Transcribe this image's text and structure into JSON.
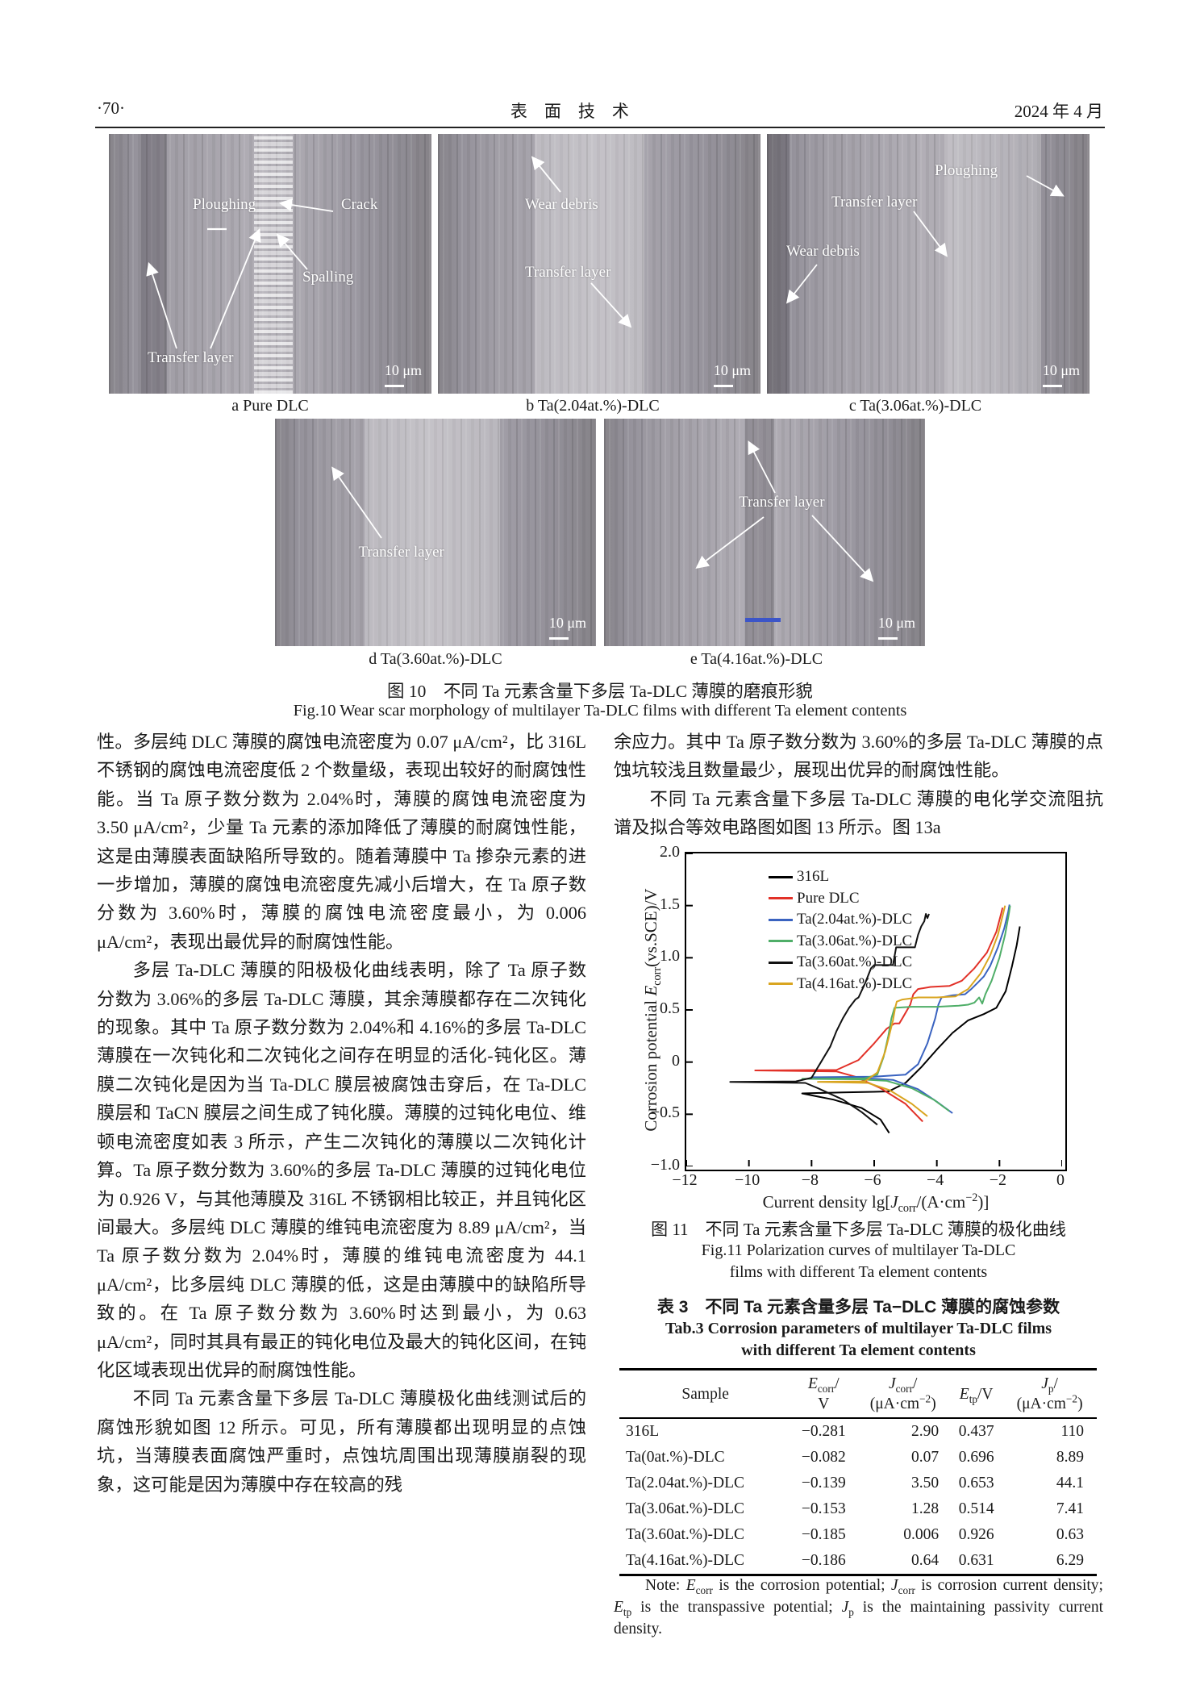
{
  "header": {
    "page_number": "·70·",
    "journal_title": "表　面　技　术",
    "date": "2024 年 4 月"
  },
  "figure10": {
    "images": [
      {
        "caption": "a  Pure DLC",
        "scale": "10 μm",
        "ploughing": "Ploughing",
        "crack": "Crack",
        "spalling": "Spalling",
        "transfer": "Transfer layer"
      },
      {
        "caption": "b  Ta(2.04at.%)-DLC",
        "scale": "10 μm",
        "wear_debris": "Wear debris",
        "transfer": "Transfer layer"
      },
      {
        "caption": "c  Ta(3.06at.%)-DLC",
        "scale": "10 μm",
        "ploughing": "Ploughing",
        "transfer": "Transfer layer",
        "wear_debris": "Wear debris"
      },
      {
        "caption": "d  Ta(3.60at.%)-DLC",
        "scale": "10 μm",
        "transfer": "Transfer layer"
      },
      {
        "caption": "e  Ta(4.16at.%)-DLC",
        "scale": "10 μm",
        "transfer": "Transfer layer"
      }
    ],
    "caption_zh": "图 10　不同 Ta 元素含量下多层 Ta-DLC 薄膜的磨痕形貌",
    "caption_en": "Fig.10 Wear scar morphology of multilayer Ta-DLC films with different Ta element contents"
  },
  "left_column": {
    "paragraphs": [
      "性。多层纯 DLC 薄膜的腐蚀电流密度为 0.07 μA/cm²，比 316L 不锈钢的腐蚀电流密度低 2 个数量级，表现出较好的耐腐蚀性能。当 Ta 原子数分数为 2.04%时，薄膜的腐蚀电流密度为 3.50 μA/cm²，少量 Ta 元素的添加降低了薄膜的耐腐蚀性能，这是由薄膜表面缺陷所导致的。随着薄膜中 Ta 掺杂元素的进一步增加，薄膜的腐蚀电流密度先减小后增大，在 Ta 原子数分数为 3.60%时，薄膜的腐蚀电流密度最小，为 0.006 μA/cm²，表现出最优异的耐腐蚀性能。",
      "多层 Ta-DLC 薄膜的阳极极化曲线表明，除了 Ta 原子数分数为 3.06%的多层 Ta-DLC 薄膜，其余薄膜都存在二次钝化的现象。其中 Ta 原子数分数为 2.04%和 4.16%的多层 Ta-DLC 薄膜在一次钝化和二次钝化之间存在明显的活化-钝化区。薄膜二次钝化是因为当 Ta-DLC 膜层被腐蚀击穿后，在 Ta-DLC 膜层和 TaCN 膜层之间生成了钝化膜。薄膜的过钝化电位、维顿电流密度如表 3 所示，产生二次钝化的薄膜以二次钝化计算。Ta 原子数分数为 3.60%的多层 Ta-DLC 薄膜的过钝化电位为 0.926 V，与其他薄膜及 316L 不锈钢相比较正，并且钝化区间最大。多层纯 DLC 薄膜的维钝电流密度为 8.89 μA/cm²，当 Ta 原子数分数为 2.04%时，薄膜的维钝电流密度为 44.1 μA/cm²，比多层纯 DLC 薄膜的低，这是由薄膜中的缺陷所导致的。在 Ta 原子数分数为 3.60%时达到最小，为 0.63 μA/cm²，同时其具有最正的钝化电位及最大的钝化区间，在钝化区域表现出优异的耐腐蚀性能。",
      "不同 Ta 元素含量下多层 Ta-DLC 薄膜极化曲线测试后的腐蚀形貌如图 12 所示。可见，所有薄膜都出现明显的点蚀坑，当薄膜表面腐蚀严重时，点蚀坑周围出现薄膜崩裂的现象，这可能是因为薄膜中存在较高的残"
    ]
  },
  "right_column": {
    "paragraphs": [
      "余应力。其中 Ta 原子数分数为 3.60%的多层 Ta-DLC 薄膜的点蚀坑较浅且数量最少，展现出优异的耐腐蚀性能。",
      "不同 Ta 元素含量下多层 Ta-DLC 薄膜的电化学交流阻抗谱及拟合等效电路图如图 13 所示。图 13a"
    ]
  },
  "chart_data": {
    "type": "line",
    "xlabel": "Current density lg[*J*_{corr}/(A·cm^{−2})]",
    "ylabel": "Corrosion potential *E*_{corr}(vs.SCE)/V",
    "xlim": [
      -12,
      0
    ],
    "ylim": [
      -1.0,
      2.0
    ],
    "xticks": [
      -12,
      -10,
      -8,
      -6,
      -4,
      -2,
      0
    ],
    "yticks": [
      -1.0,
      -0.5,
      0,
      0.5,
      1.0,
      1.5,
      2.0
    ],
    "grid": false,
    "legend_position": "top-left",
    "series": [
      {
        "name": "316L",
        "color": "#000000",
        "points": [
          [
            -5.52,
            -0.68
          ],
          [
            -5.8,
            -0.55
          ],
          [
            -6.4,
            -0.44
          ],
          [
            -7.3,
            -0.36
          ],
          [
            -8.3,
            -0.3
          ],
          [
            -7.0,
            -0.29
          ],
          [
            -6.0,
            -0.285
          ],
          [
            -5.54,
            -0.281
          ],
          [
            -5.0,
            -0.2
          ],
          [
            -4.5,
            -0.05
          ],
          [
            -4.0,
            0.12
          ],
          [
            -3.5,
            0.28
          ],
          [
            -3.0,
            0.4
          ],
          [
            -2.5,
            0.46
          ],
          [
            -2.1,
            0.52
          ],
          [
            -1.8,
            0.68
          ],
          [
            -1.6,
            0.92
          ],
          [
            -1.45,
            1.12
          ],
          [
            -1.35,
            1.3
          ]
        ]
      },
      {
        "name": "Pure DLC",
        "color": "#e23128",
        "points": [
          [
            -4.45,
            -0.57
          ],
          [
            -5.0,
            -0.4
          ],
          [
            -5.8,
            -0.25
          ],
          [
            -6.6,
            -0.14
          ],
          [
            -7.2,
            -0.09
          ],
          [
            -9.8,
            -0.08
          ],
          [
            -7.2,
            -0.075
          ],
          [
            -6.5,
            0.02
          ],
          [
            -6.0,
            0.18
          ],
          [
            -5.6,
            0.32
          ],
          [
            -5.35,
            0.37
          ],
          [
            -5.2,
            0.37
          ],
          [
            -5.1,
            0.42
          ],
          [
            -4.85,
            0.55
          ],
          [
            -4.75,
            0.65
          ],
          [
            -4.6,
            0.7
          ],
          [
            -4.2,
            0.72
          ],
          [
            -3.6,
            0.73
          ],
          [
            -3.2,
            0.78
          ],
          [
            -2.8,
            0.9
          ],
          [
            -2.4,
            1.05
          ],
          [
            -2.1,
            1.25
          ],
          [
            -1.95,
            1.42
          ],
          [
            -1.9,
            1.48
          ]
        ]
      },
      {
        "name": "Ta(2.04at.%)-DLC",
        "color": "#3a63c0",
        "points": [
          [
            -3.5,
            -0.49
          ],
          [
            -4.0,
            -0.38
          ],
          [
            -4.6,
            -0.26
          ],
          [
            -5.4,
            -0.17
          ],
          [
            -6.5,
            -0.15
          ],
          [
            -8.0,
            -0.145
          ],
          [
            -6.0,
            -0.14
          ],
          [
            -5.0,
            -0.12
          ],
          [
            -4.6,
            -0.02
          ],
          [
            -4.3,
            0.18
          ],
          [
            -4.05,
            0.42
          ],
          [
            -3.95,
            0.55
          ],
          [
            -3.85,
            0.62
          ],
          [
            -3.5,
            0.64
          ],
          [
            -3.1,
            0.65
          ],
          [
            -2.9,
            0.7
          ],
          [
            -2.7,
            0.76
          ],
          [
            -2.5,
            0.82
          ],
          [
            -2.3,
            0.92
          ],
          [
            -2.05,
            1.1
          ],
          [
            -1.85,
            1.28
          ],
          [
            -1.72,
            1.44
          ],
          [
            -1.68,
            1.51
          ]
        ]
      },
      {
        "name": "Ta(3.06at.%)-DLC",
        "color": "#4fae68",
        "points": [
          [
            -3.6,
            -0.47
          ],
          [
            -4.1,
            -0.36
          ],
          [
            -4.8,
            -0.25
          ],
          [
            -5.6,
            -0.18
          ],
          [
            -6.5,
            -0.165
          ],
          [
            -8.3,
            -0.16
          ],
          [
            -6.3,
            -0.155
          ],
          [
            -5.9,
            -0.12
          ],
          [
            -5.7,
            0.05
          ],
          [
            -5.55,
            0.25
          ],
          [
            -5.45,
            0.42
          ],
          [
            -5.35,
            0.52
          ],
          [
            -4.8,
            0.53
          ],
          [
            -4.0,
            0.53
          ],
          [
            -3.3,
            0.54
          ],
          [
            -3.0,
            0.55
          ],
          [
            -2.8,
            0.57
          ],
          [
            -2.65,
            0.62
          ],
          [
            -2.55,
            0.56
          ],
          [
            -2.45,
            0.65
          ],
          [
            -2.25,
            0.78
          ],
          [
            -2.0,
            1.0
          ],
          [
            -1.82,
            1.22
          ],
          [
            -1.7,
            1.42
          ],
          [
            -1.66,
            1.5
          ]
        ]
      },
      {
        "name": "Ta(3.60at.%)-DLC",
        "color": "#111111",
        "points": [
          [
            -5.9,
            -0.6
          ],
          [
            -6.4,
            -0.48
          ],
          [
            -7.0,
            -0.36
          ],
          [
            -7.8,
            -0.25
          ],
          [
            -8.2,
            -0.2
          ],
          [
            -10.6,
            -0.19
          ],
          [
            -8.5,
            -0.185
          ],
          [
            -8.0,
            -0.15
          ],
          [
            -7.7,
            0.0
          ],
          [
            -7.4,
            0.15
          ],
          [
            -7.2,
            0.3
          ],
          [
            -7.0,
            0.42
          ],
          [
            -6.8,
            0.52
          ],
          [
            -6.6,
            0.6
          ],
          [
            -6.5,
            0.62
          ],
          [
            -6.3,
            0.75
          ],
          [
            -6.1,
            0.9
          ],
          [
            -6.0,
            0.93
          ],
          [
            -5.4,
            0.93
          ],
          [
            -5.3,
            1.1
          ],
          [
            -4.7,
            1.1
          ],
          [
            -4.6,
            1.22
          ],
          [
            -4.5,
            1.3
          ],
          [
            -4.4,
            1.35
          ],
          [
            -4.35,
            1.42
          ],
          [
            -4.3,
            1.38
          ],
          [
            -4.25,
            1.42
          ]
        ]
      },
      {
        "name": "Ta(4.16at.%)-DLC",
        "color": "#d9a520",
        "points": [
          [
            -4.3,
            -0.52
          ],
          [
            -4.8,
            -0.4
          ],
          [
            -5.5,
            -0.27
          ],
          [
            -6.2,
            -0.2
          ],
          [
            -7.8,
            -0.19
          ],
          [
            -6.3,
            -0.185
          ],
          [
            -5.9,
            -0.1
          ],
          [
            -5.65,
            0.1
          ],
          [
            -5.5,
            0.28
          ],
          [
            -5.4,
            0.4
          ],
          [
            -5.33,
            0.52
          ],
          [
            -5.28,
            0.58
          ],
          [
            -5.1,
            0.6
          ],
          [
            -4.6,
            0.62
          ],
          [
            -4.0,
            0.62
          ],
          [
            -3.4,
            0.63
          ],
          [
            -3.0,
            0.7
          ],
          [
            -2.6,
            0.85
          ],
          [
            -2.3,
            1.02
          ],
          [
            -2.05,
            1.22
          ],
          [
            -1.9,
            1.4
          ],
          [
            -1.82,
            1.5
          ]
        ]
      }
    ]
  },
  "figure11": {
    "caption_zh": "图 11　不同 Ta 元素含量下多层 Ta-DLC 薄膜的极化曲线",
    "caption_en1": "Fig.11 Polarization curves of multilayer Ta-DLC",
    "caption_en2": "films with different Ta element contents"
  },
  "table3": {
    "title_zh": "表 3　不同 Ta 元素含量多层 Ta−DLC 薄膜的腐蚀参数",
    "title_en1": "Tab.3 Corrosion parameters of multilayer Ta-DLC films",
    "title_en2": "with different Ta element contents",
    "headers": [
      "Sample",
      "*E*_{corr}/\nV",
      "*J*_{corr}/\n(μA·cm^{−2})",
      "*E*_{tp}/V",
      "*J*_{p}/\n(μA·cm^{−2})"
    ],
    "rows": [
      [
        "316L",
        "−0.281",
        "2.90",
        "0.437",
        "110"
      ],
      [
        "Ta(0at.%)-DLC",
        "−0.082",
        "0.07",
        "0.696",
        "8.89"
      ],
      [
        "Ta(2.04at.%)-DLC",
        "−0.139",
        "3.50",
        "0.653",
        "44.1"
      ],
      [
        "Ta(3.06at.%)-DLC",
        "−0.153",
        "1.28",
        "0.514",
        "7.41"
      ],
      [
        "Ta(3.60at.%)-DLC",
        "−0.185",
        "0.006",
        "0.926",
        "0.63"
      ],
      [
        "Ta(4.16at.%)-DLC",
        "−0.186",
        "0.64",
        "0.631",
        "6.29"
      ]
    ],
    "note": "Note: *E*_{corr} is the corrosion potential; *J*_{corr} is corrosion current density; *E*_{tp} is the transpassive potential; *J*_{p} is the maintaining passivity current density."
  }
}
